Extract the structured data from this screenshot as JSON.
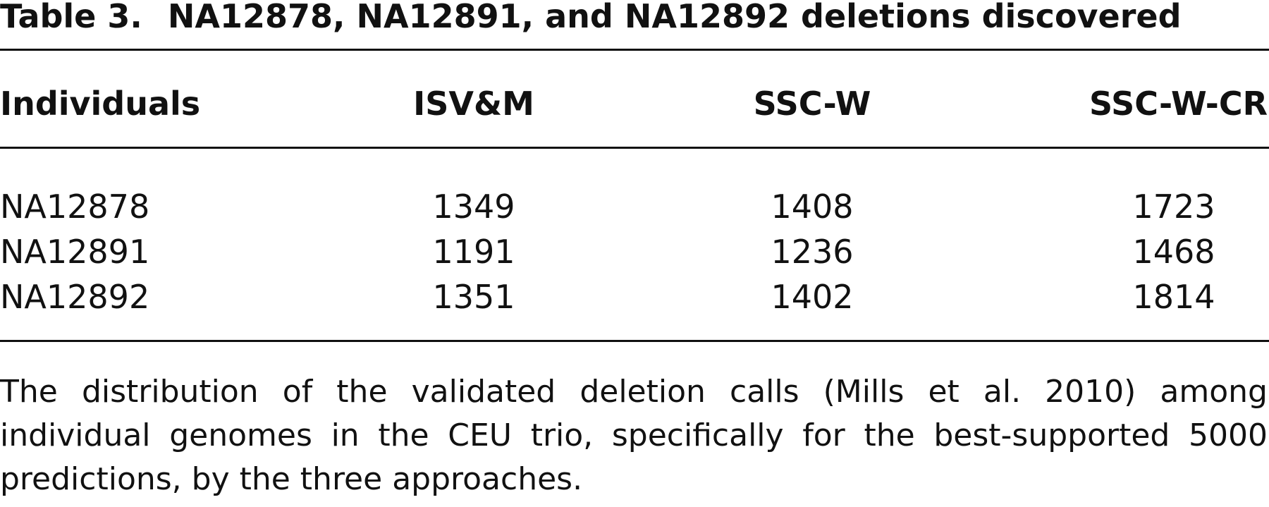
{
  "title": {
    "label": "Table 3.",
    "text": "NA12878, NA12891, and NA12892 deletions discovered"
  },
  "table": {
    "columns": [
      "Individuals",
      "ISV&M",
      "SSC-W",
      "SSC-W-CR"
    ],
    "rows": [
      [
        "NA12878",
        "1349",
        "1408",
        "1723"
      ],
      [
        "NA12891",
        "1191",
        "1236",
        "1468"
      ],
      [
        "NA12892",
        "1351",
        "1402",
        "1814"
      ]
    ]
  },
  "caption": "The distribution of the validated deletion calls (Mills et al. 2010) among individual genomes in the CEU trio, specifically for the best-supported 5000 predictions, by the three approaches."
}
